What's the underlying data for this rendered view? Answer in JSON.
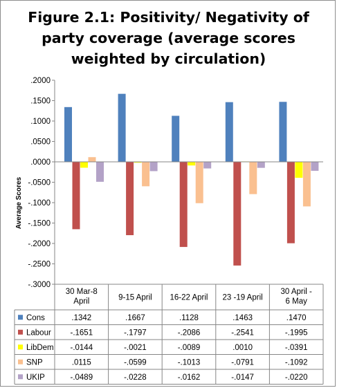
{
  "chart_data": {
    "type": "bar",
    "title": "Figure 2.1: Positivity/ Negativity of\nparty coverage (average scores\nweighted by circulation)",
    "ylabel": "Average Scores",
    "ylim": [
      -0.3,
      0.2
    ],
    "yticks": [
      {
        "value": 0.2,
        "label": ".2000"
      },
      {
        "value": 0.15,
        "label": ".1500"
      },
      {
        "value": 0.1,
        "label": ".1000"
      },
      {
        "value": 0.05,
        "label": ".0500"
      },
      {
        "value": 0.0,
        "label": ".0000"
      },
      {
        "value": -0.05,
        "label": "-.0500"
      },
      {
        "value": -0.1,
        "label": "-.1000"
      },
      {
        "value": -0.15,
        "label": "-.1500"
      },
      {
        "value": -0.2,
        "label": "-.2000"
      },
      {
        "value": -0.25,
        "label": "-.2500"
      },
      {
        "value": -0.3,
        "label": "-.3000"
      }
    ],
    "categories": [
      "30 Mar-8 April",
      "9-15 April",
      "16-22 April",
      "23 -19 April",
      "30 April - 6 May"
    ],
    "series": [
      {
        "name": "Cons",
        "color": "#4f81bd",
        "values": [
          0.1342,
          0.1667,
          0.1128,
          0.1463,
          0.147
        ],
        "labels": [
          ".1342",
          ".1667",
          ".1128",
          ".1463",
          ".1470"
        ]
      },
      {
        "name": "Labour",
        "color": "#c0504d",
        "values": [
          -0.1651,
          -0.1797,
          -0.2086,
          -0.2541,
          -0.1995
        ],
        "labels": [
          "-.1651",
          "-.1797",
          "-.2086",
          "-.2541",
          "-.1995"
        ]
      },
      {
        "name": "LibDem",
        "color": "#ffff00",
        "values": [
          -0.0144,
          -0.0021,
          -0.0089,
          0.001,
          -0.0391
        ],
        "labels": [
          "-.0144",
          "-.0021",
          "-.0089",
          ".0010",
          "-.0391"
        ]
      },
      {
        "name": "SNP",
        "color": "#fac090",
        "values": [
          0.0115,
          -0.0599,
          -0.1013,
          -0.0791,
          -0.1092
        ],
        "labels": [
          ".0115",
          "-.0599",
          "-.1013",
          "-.0791",
          "-.1092"
        ]
      },
      {
        "name": "UKIP",
        "color": "#b3a2c7",
        "values": [
          -0.0489,
          -0.0228,
          -0.0162,
          -0.0147,
          -0.022
        ],
        "labels": [
          "-.0489",
          "-.0228",
          "-.0162",
          "-.0147",
          "-.0220"
        ]
      }
    ],
    "grid": false,
    "legend": "data-table"
  }
}
